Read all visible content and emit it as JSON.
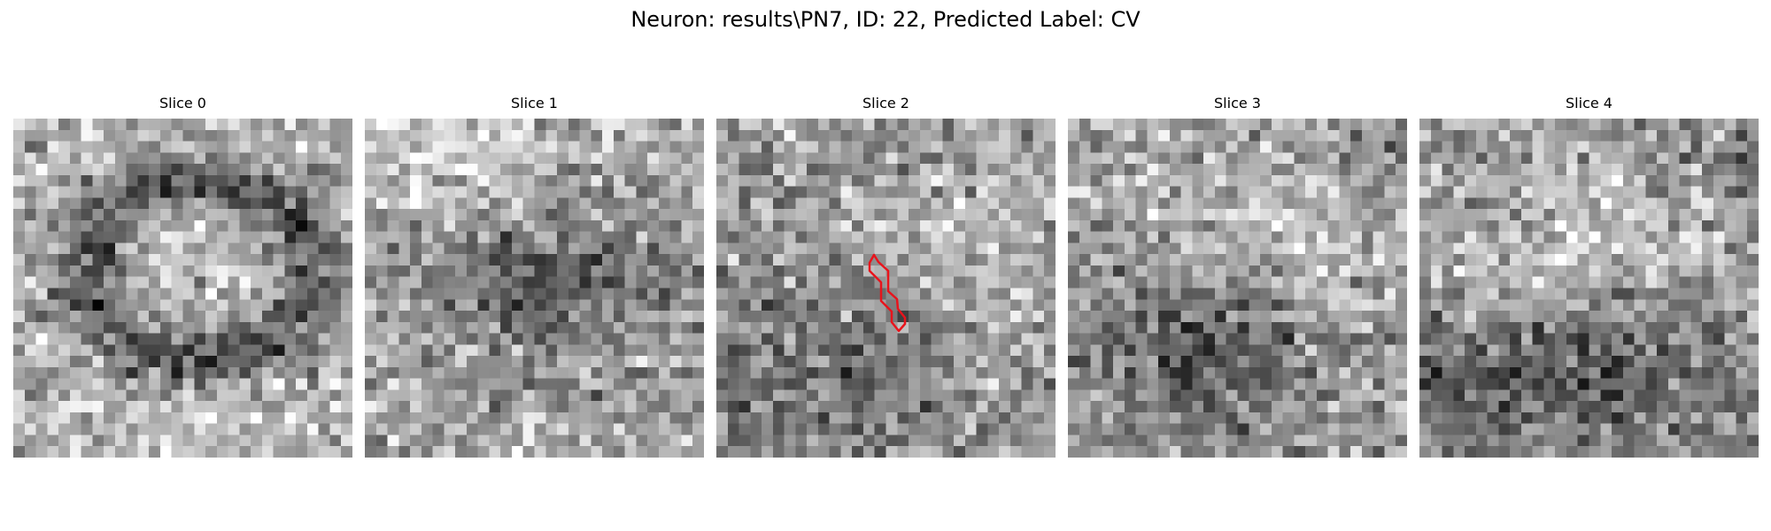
{
  "figure": {
    "title": "Neuron: results\\PN7, ID: 22, Predicted Label: CV"
  },
  "panels": [
    {
      "title": "Slice 0"
    },
    {
      "title": "Slice 1"
    },
    {
      "title": "Slice 2"
    },
    {
      "title": "Slice 3"
    },
    {
      "title": "Slice 4"
    }
  ],
  "colors": {
    "contour": "#e8141c",
    "background": "#ffffff"
  }
}
